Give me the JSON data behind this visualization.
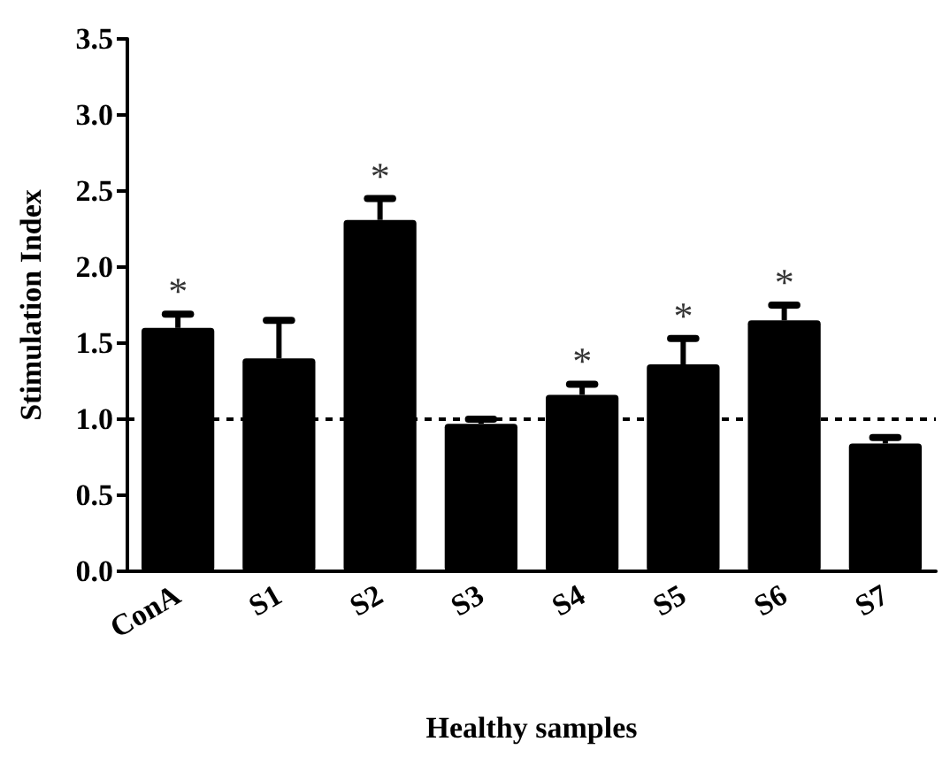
{
  "chart_data": {
    "type": "bar",
    "xlabel": "Healthy samples",
    "ylabel": "Stimulation Index",
    "categories": [
      "ConA",
      "S1",
      "S2",
      "S3",
      "S4",
      "S5",
      "S6",
      "S7"
    ],
    "values": [
      1.6,
      1.4,
      2.31,
      0.97,
      1.16,
      1.36,
      1.65,
      0.84
    ],
    "errors": [
      [
        1.6,
        1.69
      ],
      [
        1.4,
        1.65
      ],
      [
        2.31,
        2.45
      ],
      [
        0.97,
        1.0
      ],
      [
        1.16,
        1.23
      ],
      [
        1.36,
        1.53
      ],
      [
        1.65,
        1.75
      ],
      [
        0.84,
        0.88
      ]
    ],
    "color": "#000000",
    "ylim": [
      0,
      3.5
    ],
    "yticks": [
      {
        "value": 0,
        "label": "0.0"
      },
      0.5,
      {
        "value": 1,
        "label": "1.0"
      },
      1.5,
      {
        "value": 2,
        "label": "2.0"
      },
      2.5,
      {
        "value": 3,
        "label": "3.0"
      },
      3.5
    ],
    "ref_lines": [
      {
        "axis": "y",
        "value": 1,
        "line_style": "dashed",
        "color": "#000000"
      }
    ],
    "annotations": [
      {
        "text": "*",
        "x": "ConA",
        "y": 1.69
      },
      {
        "text": "*",
        "x": "S2",
        "y": 2.45
      },
      {
        "text": "*",
        "x": "S4",
        "y": 1.23
      },
      {
        "text": "*",
        "x": "S5",
        "y": 1.53
      },
      {
        "text": "*",
        "x": "S6",
        "y": 1.75
      }
    ],
    "grid": false
  }
}
